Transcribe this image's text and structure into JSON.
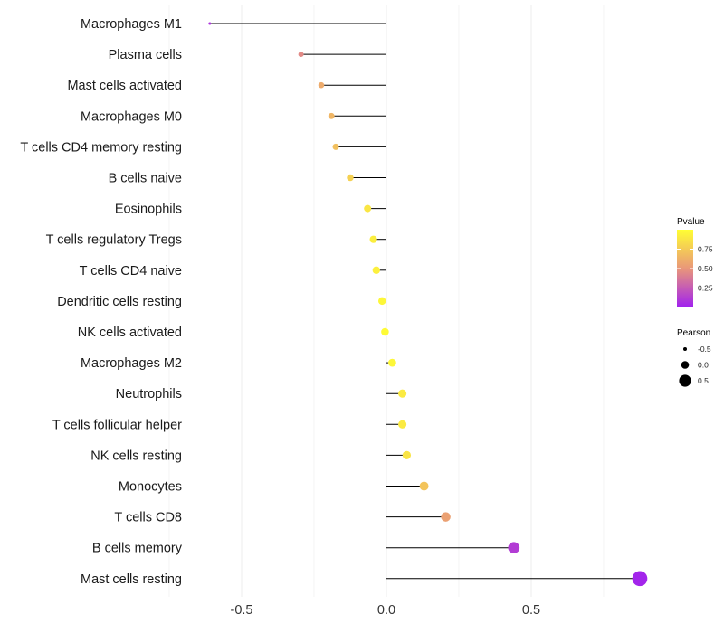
{
  "chart_data": {
    "type": "lollipop",
    "title": "",
    "xlabel": "",
    "ylabel": "",
    "xlim": [
      -0.7,
      0.9
    ],
    "x_ticks": [
      -0.5,
      0.0,
      0.5
    ],
    "x_tick_labels": [
      "-0.5",
      "0.0",
      "0.5"
    ],
    "categories": [
      "Macrophages M1",
      "Plasma cells",
      "Mast cells activated",
      "Macrophages M0",
      "T cells CD4 memory resting",
      "B cells naive",
      "Eosinophils",
      "T cells regulatory  Tregs ",
      "T cells CD4 naive",
      "Dendritic cells resting",
      "NK cells activated",
      "Macrophages M2",
      "Neutrophils",
      "T cells follicular helper",
      "NK cells resting",
      "Monocytes",
      "T cells CD8",
      "B cells memory",
      "Mast cells resting"
    ],
    "pearson": [
      -0.61,
      -0.295,
      -0.225,
      -0.19,
      -0.175,
      -0.125,
      -0.065,
      -0.045,
      -0.035,
      -0.015,
      -0.005,
      0.02,
      0.055,
      0.055,
      0.07,
      0.13,
      0.205,
      0.44,
      0.875
    ],
    "pvalue": [
      0.08,
      0.45,
      0.6,
      0.65,
      0.7,
      0.78,
      0.88,
      0.92,
      0.93,
      0.96,
      0.98,
      0.96,
      0.9,
      0.9,
      0.87,
      0.72,
      0.55,
      0.12,
      0.02
    ],
    "legend_color": {
      "title": "Pvalue",
      "range": [
        0.0,
        1.0
      ],
      "breaks": [
        0.25,
        0.5,
        0.75
      ],
      "labels": [
        "0.25",
        "0.50",
        "0.75"
      ],
      "low_color": "#A020F0",
      "mid_color": "#E9967A",
      "high_color": "#FFFF33"
    },
    "legend_size": {
      "title": "Pearson",
      "breaks": [
        -0.5,
        0.0,
        0.5
      ],
      "labels": [
        "-0.5",
        "0.0",
        "0.5"
      ]
    },
    "grid": true,
    "legend_position": "right"
  }
}
